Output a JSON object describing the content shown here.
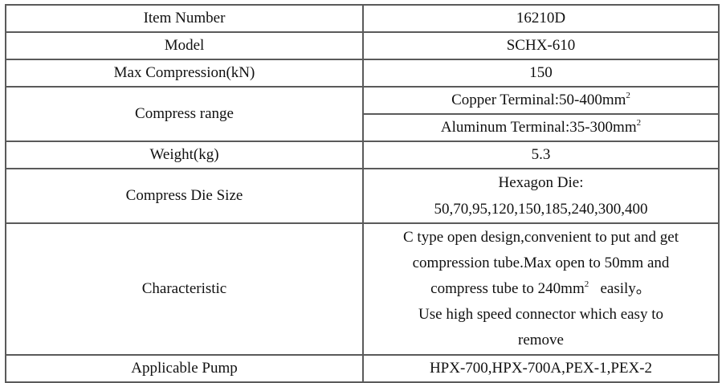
{
  "rows": {
    "item_number": {
      "label": "Item Number",
      "value": "16210D"
    },
    "model": {
      "label": "Model",
      "value": "SCHX-610"
    },
    "max_compression": {
      "label": "Max Compression(kN)",
      "value": "150"
    },
    "compress_range": {
      "label": "Compress range",
      "copper": "Copper Terminal:50-400mm",
      "aluminum": "Aluminum Terminal:35-300mm",
      "sup": "2"
    },
    "weight": {
      "label": "Weight(kg)",
      "value": "5.3"
    },
    "die_size": {
      "label": "Compress Die Size",
      "line1": "Hexagon Die:",
      "line2": "50,70,95,120,150,185,240,300,400"
    },
    "characteristic": {
      "label": "Characteristic",
      "line1": "C type open design,convenient to put and get",
      "line2": "compression tube.Max open to 50mm and",
      "line3a": "compress tube to 240mm",
      "line3sup": "2",
      "line3b": "   easily。",
      "line4": "Use high speed connector which easy to",
      "line5": "remove"
    },
    "pump": {
      "label": "Applicable Pump",
      "value": "HPX-700,HPX-700A,PEX-1,PEX-2"
    }
  }
}
